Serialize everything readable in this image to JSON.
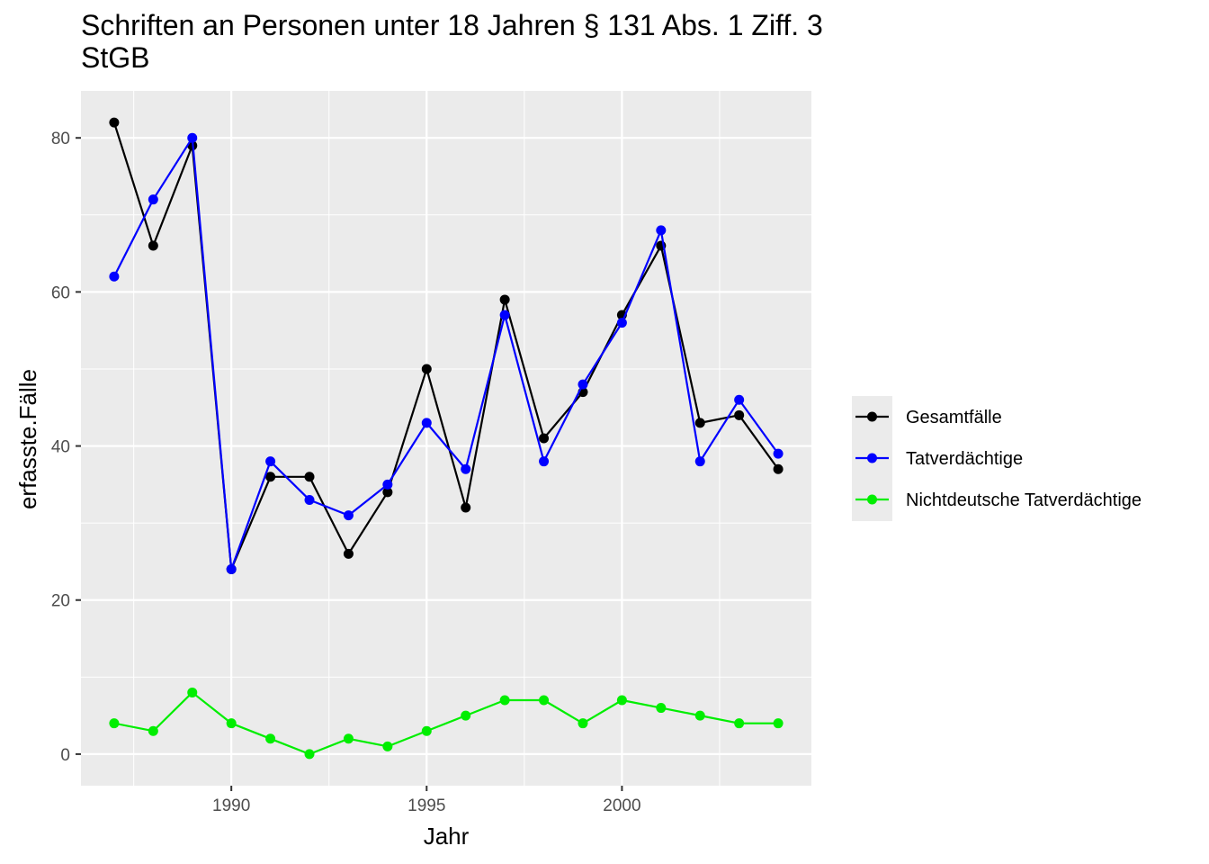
{
  "chart_data": {
    "type": "line",
    "title": "Schriften an Personen unter 18 Jahren § 131 Abs. 1 Ziff. 3\nStGB",
    "xlabel": "Jahr",
    "ylabel": "erfasste.Fälle",
    "x": [
      1987,
      1988,
      1989,
      1990,
      1991,
      1992,
      1993,
      1994,
      1995,
      1996,
      1997,
      1998,
      1999,
      2000,
      2001,
      2002,
      2003,
      2004
    ],
    "xticks": [
      1990,
      1995,
      2000
    ],
    "yticks": [
      0,
      20,
      40,
      60,
      80
    ],
    "xlim": [
      1986.15,
      2004.85
    ],
    "ylim": [
      -4.1,
      86.1
    ],
    "grid": true,
    "legend_position": "right",
    "series": [
      {
        "name": "Gesamtfälle",
        "color": "#000000",
        "values": [
          82,
          66,
          79,
          24,
          36,
          36,
          26,
          34,
          50,
          32,
          59,
          41,
          47,
          57,
          66,
          43,
          44,
          37
        ]
      },
      {
        "name": "Tatverdächtige",
        "color": "#0000ff",
        "values": [
          62,
          72,
          80,
          24,
          38,
          33,
          31,
          35,
          43,
          37,
          57,
          38,
          48,
          56,
          68,
          38,
          46,
          39
        ]
      },
      {
        "name": "Nichtdeutsche Tatverdächtige",
        "color": "#00ee00",
        "values": [
          4,
          3,
          8,
          4,
          2,
          0,
          2,
          1,
          3,
          5,
          7,
          7,
          4,
          7,
          6,
          5,
          4,
          4
        ]
      }
    ]
  }
}
